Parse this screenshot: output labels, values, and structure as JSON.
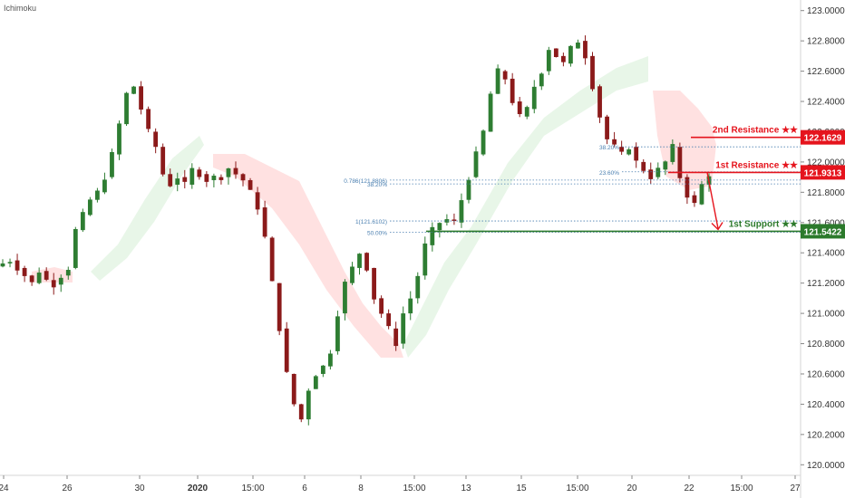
{
  "indicator_label": "Ichimoku",
  "chart_data": {
    "type": "candlestick",
    "y_ticks": [
      120.0,
      120.2,
      120.4,
      120.6,
      120.8,
      121.0,
      121.2,
      121.4,
      121.6,
      121.8,
      122.0,
      122.2,
      122.4,
      122.6,
      122.8,
      123.0
    ],
    "y_tick_labels": [
      "120.0000",
      "120.2000",
      "120.4000",
      "120.6000",
      "120.8000",
      "121.0000",
      "121.2000",
      "121.4000",
      "121.6000",
      "121.8000",
      "122.0000",
      "122.2000",
      "122.4000",
      "122.6000",
      "122.8000",
      "123.0000"
    ],
    "ylim": [
      119.93,
      123.07
    ],
    "x_ticks": [
      "24",
      "26",
      "30",
      "2020",
      "15:00",
      "6",
      "8",
      "15:00",
      "13",
      "15",
      "15:00",
      "20",
      "22",
      "15:00",
      "27"
    ],
    "price_path": [
      121.33,
      121.35,
      121.3,
      121.25,
      121.2,
      121.28,
      121.22,
      121.19,
      121.25,
      121.3,
      121.55,
      121.65,
      121.75,
      121.8,
      121.9,
      122.05,
      122.25,
      122.45,
      122.5,
      122.35,
      122.2,
      122.1,
      121.92,
      121.85,
      121.9,
      121.85,
      121.95,
      121.92,
      121.88,
      121.9,
      121.9,
      121.96,
      121.92,
      121.88,
      121.8,
      121.7,
      121.5,
      121.2,
      120.9,
      120.6,
      120.4,
      120.3,
      120.5,
      120.6,
      120.65,
      120.75,
      121.0,
      121.2,
      121.3,
      121.4,
      121.3,
      121.1,
      121.0,
      120.9,
      120.8,
      121.0,
      121.1,
      121.25,
      121.45,
      121.55,
      121.6,
      121.62,
      121.6,
      121.75,
      121.9,
      122.05,
      122.2,
      122.45,
      122.6,
      122.55,
      122.4,
      122.3,
      122.35,
      122.5,
      122.6,
      122.75,
      122.7,
      122.65,
      122.75,
      122.8,
      122.7,
      122.5,
      122.3,
      122.15,
      122.1,
      122.05,
      122.1,
      122.0,
      121.95,
      121.9,
      121.95,
      122.0,
      122.1,
      121.9,
      121.78,
      121.72,
      121.85,
      121.92
    ],
    "levels": [
      {
        "name": "2nd Resistance ★★",
        "value": 122.1629,
        "label": "122.1629",
        "color": "#e5141d"
      },
      {
        "name": "1st Resistance ★★",
        "value": 121.9313,
        "label": "121.9313",
        "color": "#e5141d"
      },
      {
        "name": "1st Support ★★",
        "value": 121.5422,
        "label": "121.5422",
        "color": "#2c7a2c"
      }
    ],
    "fib_lines": [
      {
        "label": "38.20%",
        "value": 122.1
      },
      {
        "label": "23.60%",
        "value": 121.935
      },
      {
        "label": "0.786(121.8806)",
        "value": 121.8806
      },
      {
        "label": "38.20%",
        "value": 121.855
      },
      {
        "label": "1(121.6102)",
        "value": 121.6102
      },
      {
        "label": "50.00%",
        "value": 121.535
      }
    ],
    "grid": false
  }
}
